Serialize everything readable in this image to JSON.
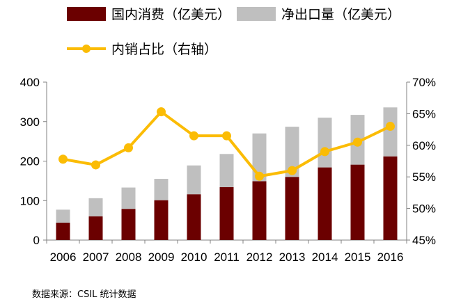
{
  "legend": {
    "series1": "国内消费（亿美元）",
    "series2": "净出口量（亿美元）",
    "series3": "内销占比（右轴）"
  },
  "colors": {
    "domestic": "#6b0000",
    "export": "#bfbfbf",
    "ratio": "#fbbc05"
  },
  "source": "数据来源：CSIL 统计数据",
  "chart_data": {
    "type": "bar",
    "stacked": true,
    "categories": [
      "2006",
      "2007",
      "2008",
      "2009",
      "2010",
      "2011",
      "2012",
      "2013",
      "2014",
      "2015",
      "2016"
    ],
    "series": [
      {
        "name": "国内消费（亿美元）",
        "type": "bar",
        "axis": "left",
        "values": [
          44,
          60,
          79,
          101,
          116,
          134,
          149,
          160,
          184,
          191,
          212
        ]
      },
      {
        "name": "净出口量（亿美元）",
        "type": "bar",
        "axis": "left",
        "values": [
          33,
          46,
          54,
          54,
          73,
          84,
          121,
          127,
          126,
          126,
          124
        ]
      },
      {
        "name": "内销占比（右轴）",
        "type": "line",
        "axis": "right",
        "values": [
          57.8,
          56.9,
          59.6,
          65.3,
          61.5,
          61.5,
          55.1,
          56.0,
          59.0,
          60.5,
          63.0
        ]
      }
    ],
    "y_left": {
      "min": 0,
      "max": 400,
      "ticks": [
        0,
        100,
        200,
        300,
        400
      ]
    },
    "y_right": {
      "min": 45,
      "max": 70,
      "ticks": [
        "45%",
        "50%",
        "55%",
        "60%",
        "65%",
        "70%"
      ]
    },
    "legend_position": "top"
  }
}
